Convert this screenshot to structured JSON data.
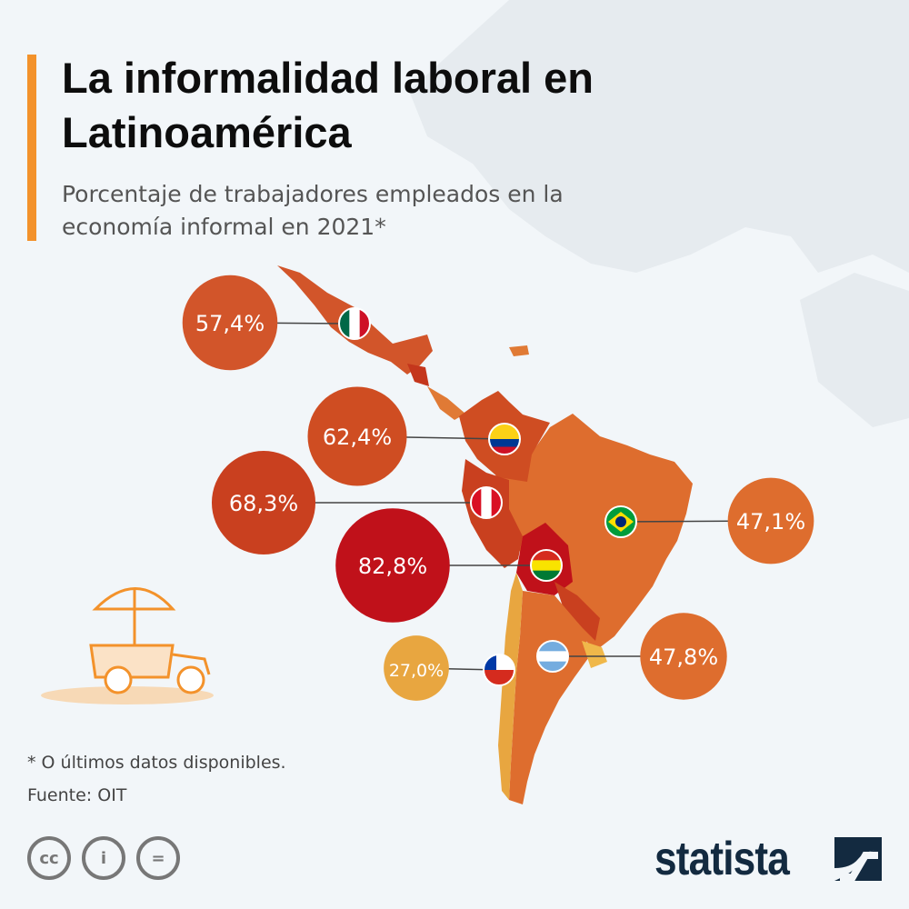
{
  "header": {
    "title": "La informalidad laboral en Latinoamérica",
    "subtitle": "Porcentaje de trabajadores empleados en la economía informal en 2021*"
  },
  "footer": {
    "note": "* O últimos datos disponibles.",
    "source": "Fuente: OIT",
    "license_icons": [
      "cc-icon",
      "by-icon",
      "nd-icon"
    ],
    "brand": "statista"
  },
  "colors": {
    "accent": "#f3922b",
    "bolivia": "#c0111a",
    "peru": "#c9401f",
    "colombia": "#cf4d22",
    "mexico": "#d2552a",
    "brazil": "#de6d2e",
    "argentina": "#de6d2e",
    "chile": "#e8a640"
  },
  "chart_data": {
    "type": "bubble-map",
    "title": "La informalidad laboral en Latinoamérica",
    "subtitle": "Porcentaje de trabajadores empleados en la economía informal en 2021*",
    "unit": "%",
    "categories": [
      "México",
      "Colombia",
      "Perú",
      "Bolivia",
      "Brasil",
      "Argentina",
      "Chile"
    ],
    "values": [
      57.4,
      62.4,
      68.3,
      82.8,
      47.1,
      47.8,
      27.0
    ],
    "labels": [
      "57,4%",
      "62,4%",
      "68,3%",
      "82,8%",
      "47,1%",
      "47,8%",
      "27,0%"
    ]
  }
}
